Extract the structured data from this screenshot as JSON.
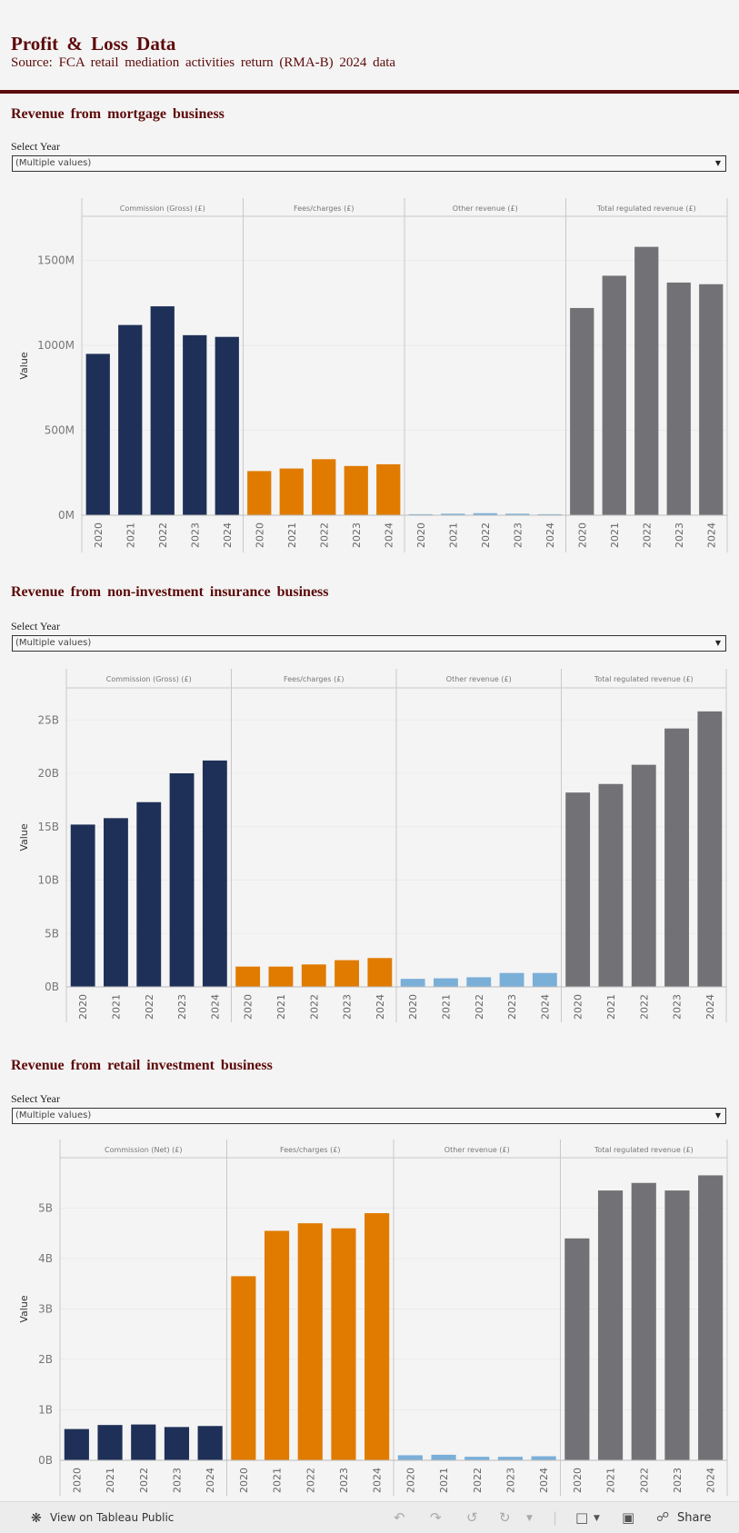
{
  "header": {
    "title": "Profit & Loss Data",
    "subtitle": "Source: FCA retail mediation activities return (RMA-B) 2024 data"
  },
  "colors": {
    "navy": "#1f3058",
    "orange": "#e07b00",
    "lightblue": "#7aafd8",
    "gray": "#727276",
    "brand": "#5d0a0a"
  },
  "sections": [
    {
      "title": "Revenue from mortgage business",
      "filter_label": "Select Year",
      "filter_value": "(Multiple values)",
      "chart_data": {
        "type": "bar",
        "ylabel": "Value",
        "ylim": [
          0,
          1760
        ],
        "unit": "M",
        "yticks": [
          {
            "v": 0,
            "label": "0M"
          },
          {
            "v": 500,
            "label": "500M"
          },
          {
            "v": 1000,
            "label": "1000M"
          },
          {
            "v": 1500,
            "label": "1500M"
          }
        ],
        "categories": [
          "2020",
          "2021",
          "2022",
          "2023",
          "2024"
        ],
        "panels": [
          {
            "name": "Commission (Gross) (£)",
            "color": "#1f3058",
            "values": [
              950,
              1120,
              1230,
              1060,
              1050
            ]
          },
          {
            "name": "Fees/charges (£)",
            "color": "#e07b00",
            "values": [
              260,
              275,
              330,
              290,
              300
            ]
          },
          {
            "name": "Other revenue (£)",
            "color": "#7aafd8",
            "values": [
              6,
              9,
              12,
              9,
              6
            ]
          },
          {
            "name": "Total regulated revenue (£)",
            "color": "#727276",
            "values": [
              1220,
              1410,
              1580,
              1370,
              1360
            ]
          }
        ]
      }
    },
    {
      "title": "Revenue from non-investment insurance business",
      "filter_label": "Select Year",
      "filter_value": "(Multiple values)",
      "chart_data": {
        "type": "bar",
        "ylabel": "Value",
        "ylim": [
          0,
          28000
        ],
        "unit": "B",
        "yticks": [
          {
            "v": 0,
            "label": "0B"
          },
          {
            "v": 5000,
            "label": "5B"
          },
          {
            "v": 10000,
            "label": "10B"
          },
          {
            "v": 15000,
            "label": "15B"
          },
          {
            "v": 20000,
            "label": "20B"
          },
          {
            "v": 25000,
            "label": "25B"
          }
        ],
        "categories": [
          "2020",
          "2021",
          "2022",
          "2023",
          "2024"
        ],
        "panels": [
          {
            "name": "Commission (Gross) (£)",
            "color": "#1f3058",
            "values": [
              15200,
              15800,
              17300,
              20000,
              21200
            ]
          },
          {
            "name": "Fees/charges (£)",
            "color": "#e07b00",
            "values": [
              1900,
              1900,
              2100,
              2500,
              2700
            ]
          },
          {
            "name": "Other revenue (£)",
            "color": "#7aafd8",
            "values": [
              750,
              800,
              900,
              1300,
              1300
            ]
          },
          {
            "name": "Total regulated revenue (£)",
            "color": "#727276",
            "values": [
              18200,
              19000,
              20800,
              24200,
              25800
            ]
          }
        ]
      }
    },
    {
      "title": "Revenue from retail investment business",
      "filter_label": "Select Year",
      "filter_value": "(Multiple values)",
      "chart_data": {
        "type": "bar",
        "ylabel": "Value",
        "ylim": [
          0,
          6000
        ],
        "unit": "B",
        "yticks": [
          {
            "v": 0,
            "label": "0B"
          },
          {
            "v": 1000,
            "label": "1B"
          },
          {
            "v": 2000,
            "label": "2B"
          },
          {
            "v": 3000,
            "label": "3B"
          },
          {
            "v": 4000,
            "label": "4B"
          },
          {
            "v": 5000,
            "label": "5B"
          }
        ],
        "categories": [
          "2020",
          "2021",
          "2022",
          "2023",
          "2024"
        ],
        "panels": [
          {
            "name": "Commission (Net) (£)",
            "color": "#1f3058",
            "values": [
              620,
              700,
              710,
              660,
              680
            ]
          },
          {
            "name": "Fees/charges (£)",
            "color": "#e07b00",
            "values": [
              3650,
              4550,
              4700,
              4600,
              4900
            ]
          },
          {
            "name": "Other revenue (£)",
            "color": "#7aafd8",
            "values": [
              100,
              110,
              70,
              70,
              80
            ]
          },
          {
            "name": "Total regulated revenue (£)",
            "color": "#727276",
            "values": [
              4400,
              5350,
              5500,
              5350,
              5650
            ]
          }
        ]
      }
    }
  ],
  "toolbar": {
    "view_label": "View on Tableau Public",
    "share_label": "Share"
  }
}
